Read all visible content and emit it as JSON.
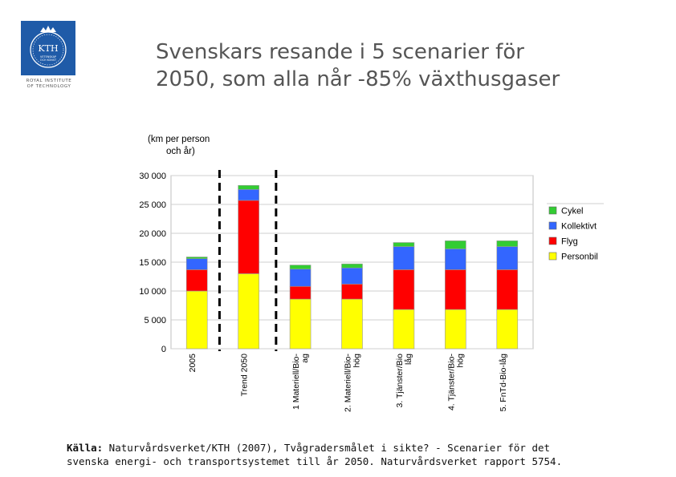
{
  "logo": {
    "monogram": "KTH",
    "caption_line1": "VETENSKAP",
    "caption_line2": "OCH KONST",
    "institute_line1": "ROYAL INSTITUTE",
    "institute_line2": "OF TECHNOLOGY"
  },
  "slide": {
    "title_line1": "Svenskars resande i 5 scenarier för",
    "title_line2": "2050, som alla når -85% växthusgaser"
  },
  "source": {
    "label": "Källa:",
    "line1": " Naturvårdsverket/KTH (2007), Tvågradersmålet i sikte? - Scenarier för det",
    "line2": "svenska energi- och transportsystemet till år 2050. Naturvårdsverket rapport 5754."
  },
  "chart_data": {
    "type": "bar",
    "stacked": true,
    "unit_label_line1": "(km per person",
    "unit_label_line2": "och år)",
    "categories": [
      "2005",
      "Trend 2050",
      "1 Materiell/Bio-\nag",
      "2. Materiell/Bio-\nhög",
      "3. Tjänster/Bio\nlåg",
      "4. Tjänster/Bio-\nhög",
      "5. FnTd-Bio-låg"
    ],
    "series": [
      {
        "name": "Personbil",
        "color": "#ffff00",
        "values": [
          10000,
          13000,
          8600,
          8600,
          6800,
          6800,
          6800
        ]
      },
      {
        "name": "Flyg",
        "color": "#ff0000",
        "values": [
          3700,
          12700,
          2200,
          2600,
          6900,
          6900,
          6900
        ]
      },
      {
        "name": "Kollektivt",
        "color": "#3366ff",
        "values": [
          1900,
          1900,
          3000,
          2800,
          4000,
          3600,
          4000
        ]
      },
      {
        "name": "Cykel",
        "color": "#33cc33",
        "values": [
          300,
          700,
          700,
          700,
          700,
          1400,
          1000
        ]
      }
    ],
    "legend_order": [
      "Cykel",
      "Kollektivt",
      "Flyg",
      "Personbil"
    ],
    "ylim": [
      0,
      30000
    ],
    "yticks": [
      0,
      5000,
      10000,
      15000,
      20000,
      25000,
      30000
    ],
    "ytick_labels": [
      "0",
      "5 000",
      "10 000",
      "15 000",
      "20 000",
      "25 000",
      "30 000"
    ],
    "grid": true,
    "legend_position": "right",
    "highlight": "dashed vertical lines framing Trend 2050"
  }
}
